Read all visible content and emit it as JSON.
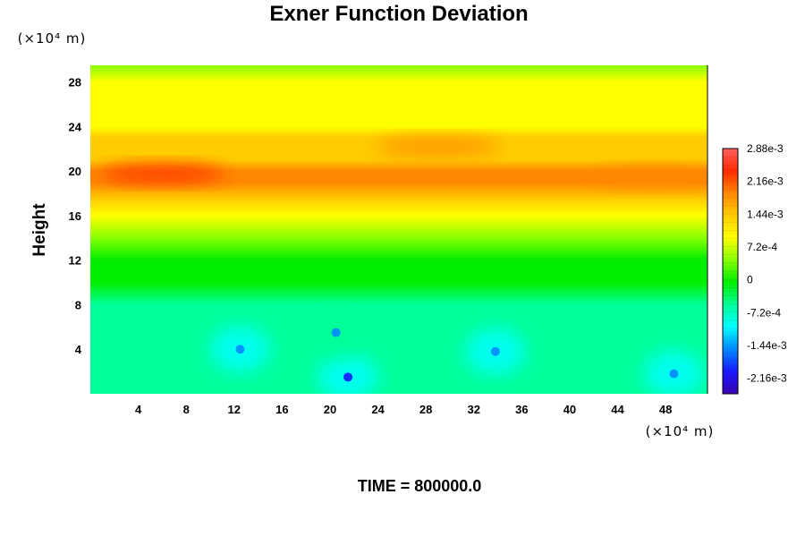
{
  "chart_data": {
    "type": "heatmap",
    "title": "Exner Function Deviation",
    "ylabel": "Height",
    "xlabel": "",
    "x_unit_label": "(×10⁴ m)",
    "y_unit_label": "(×10⁴ m)",
    "xlim": [
      0,
      51.5
    ],
    "ylim": [
      0,
      29.5
    ],
    "x_ticks": [
      4,
      8,
      12,
      16,
      20,
      24,
      28,
      32,
      36,
      40,
      44,
      48
    ],
    "y_ticks": [
      4,
      8,
      12,
      16,
      20,
      24,
      28
    ],
    "x_tick_labels": [
      "4",
      "8",
      "12",
      "16",
      "20",
      "24",
      "28",
      "32",
      "36",
      "40",
      "44",
      "48"
    ],
    "y_tick_labels": [
      "4",
      "8",
      "12",
      "16",
      "20",
      "24",
      "28"
    ],
    "colorbar": {
      "min": -0.0025,
      "max": 0.00288,
      "colors": [
        "#3a00b0",
        "#1a1aff",
        "#0088ff",
        "#00ffff",
        "#00ff99",
        "#00ee00",
        "#88ff00",
        "#ffff00",
        "#ffcc00",
        "#ff8800",
        "#ff2a00",
        "#ff6060"
      ],
      "ticks": [
        {
          "value": 0.00288,
          "label": "2.88e-3"
        },
        {
          "value": 0.00216,
          "label": "2.16e-3"
        },
        {
          "value": 0.00144,
          "label": "1.44e-3"
        },
        {
          "value": 0.00072,
          "label": "7.2e-4"
        },
        {
          "value": 0,
          "label": "0"
        },
        {
          "value": -0.00072,
          "label": "-7.2e-4"
        },
        {
          "value": -0.00144,
          "label": "-1.44e-3"
        },
        {
          "value": -0.00216,
          "label": "-2.16e-3"
        }
      ]
    },
    "height_profile": [
      {
        "y": 0,
        "value": -0.00042
      },
      {
        "y": 4,
        "value": -0.0004
      },
      {
        "y": 8,
        "value": -0.00034
      },
      {
        "y": 10,
        "value": -0.00022
      },
      {
        "y": 11,
        "value": 4e-05
      },
      {
        "y": 12,
        "value": 0.00016
      },
      {
        "y": 14,
        "value": 0.0004
      },
      {
        "y": 16,
        "value": 0.00085
      },
      {
        "y": 17.5,
        "value": 0.00135
      },
      {
        "y": 19,
        "value": 0.00185
      },
      {
        "y": 20,
        "value": 0.00195
      },
      {
        "y": 21,
        "value": 0.0016
      },
      {
        "y": 22,
        "value": 0.0016
      },
      {
        "y": 23,
        "value": 0.00125
      },
      {
        "y": 24,
        "value": 0.0011
      },
      {
        "y": 26,
        "value": 0.00085
      },
      {
        "y": 28,
        "value": 0.00068
      },
      {
        "y": 29.5,
        "value": 0.00058
      }
    ],
    "features": [
      {
        "kind": "maximum",
        "x": 6,
        "y": 19.8,
        "value": 0.0023
      },
      {
        "kind": "maximum",
        "x": 47,
        "y": 19.5,
        "value": 0.0021
      },
      {
        "kind": "maximum",
        "x": 29,
        "y": 22.2,
        "value": 0.00175
      },
      {
        "kind": "minimum",
        "x": 12.5,
        "y": 4,
        "value": -0.0011
      },
      {
        "kind": "minimum",
        "x": 21.5,
        "y": 1.5,
        "value": -0.0012
      },
      {
        "kind": "minimum",
        "x": 33.8,
        "y": 3.8,
        "value": -0.001
      },
      {
        "kind": "minimum",
        "x": 48.7,
        "y": 1.8,
        "value": -0.0009
      },
      {
        "kind": "minimum",
        "x": 20.5,
        "y": 5.5,
        "value": -0.0007
      }
    ]
  },
  "footer": {
    "time_label": "TIME = 800000.0"
  }
}
